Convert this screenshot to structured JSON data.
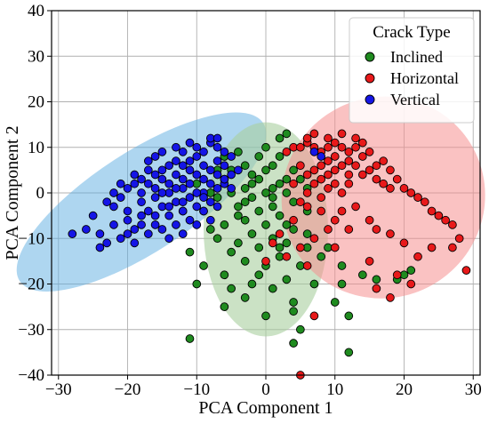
{
  "chart_data": {
    "type": "scatter",
    "title": "",
    "xlabel": "PCA Component 1",
    "ylabel": "PCA Component 2",
    "xlim": [
      -31,
      31
    ],
    "ylim": [
      -40,
      40
    ],
    "xticks": [
      -30,
      -20,
      -10,
      0,
      10,
      20,
      30
    ],
    "yticks": [
      -40,
      -30,
      -20,
      -10,
      0,
      10,
      20,
      30,
      40
    ],
    "xtick_labels": [
      "−30",
      "−20",
      "−10",
      "0",
      "10",
      "20",
      "30"
    ],
    "ytick_labels": [
      "−40",
      "−30",
      "−20",
      "−10",
      "0",
      "10",
      "20",
      "30",
      "40"
    ],
    "grid": true,
    "legend": {
      "title": "Crack Type",
      "placement": "top-right"
    },
    "ellipses": [
      {
        "series": "Vertical",
        "cx": -18,
        "cy": -2,
        "rx": 21,
        "ry": 11,
        "angle": 33,
        "color": "#5dade2",
        "opacity": 0.5
      },
      {
        "series": "Inclined",
        "cx": 0,
        "cy": -8,
        "rx": 9,
        "ry": 23.5,
        "angle": 0,
        "color": "#a9cf9f",
        "opacity": 0.6
      },
      {
        "series": "Horizontal",
        "cx": 17,
        "cy": -1,
        "rx": 14.5,
        "ry": 22.5,
        "angle": -55,
        "color": "#f5908f",
        "opacity": 0.55
      }
    ],
    "series": [
      {
        "name": "Inclined",
        "color": "#1f8b1f",
        "points": [
          [
            3,
            13
          ],
          [
            2,
            12
          ],
          [
            0,
            10
          ],
          [
            -4,
            9
          ],
          [
            -6,
            8
          ],
          [
            -3,
            6
          ],
          [
            1,
            6
          ],
          [
            -5,
            5
          ],
          [
            -2,
            4
          ],
          [
            4,
            5
          ],
          [
            -1,
            3
          ],
          [
            -6,
            3
          ],
          [
            2,
            2
          ],
          [
            1,
            1
          ],
          [
            -3,
            1
          ],
          [
            -8,
            0
          ],
          [
            3,
            0
          ],
          [
            6,
            1
          ],
          [
            0,
            0
          ],
          [
            -2,
            -1
          ],
          [
            -7,
            -1
          ],
          [
            4,
            -2
          ],
          [
            1,
            -3
          ],
          [
            -4,
            -3
          ],
          [
            -1,
            -4
          ],
          [
            -9,
            -4
          ],
          [
            6,
            -4
          ],
          [
            2,
            -5
          ],
          [
            -3,
            -6
          ],
          [
            -6,
            -7
          ],
          [
            0,
            -7
          ],
          [
            4,
            -8
          ],
          [
            -2,
            -9
          ],
          [
            1,
            -10
          ],
          [
            -7,
            -10
          ],
          [
            -4,
            -11
          ],
          [
            3,
            -11
          ],
          [
            6,
            -12
          ],
          [
            -1,
            -12
          ],
          [
            -5,
            -13
          ],
          [
            2,
            -14
          ],
          [
            -11,
            -13
          ],
          [
            -9,
            -16
          ],
          [
            -3,
            -15
          ],
          [
            0,
            -16
          ],
          [
            5,
            -16
          ],
          [
            -6,
            -18
          ],
          [
            -1,
            -18
          ],
          [
            3,
            -19
          ],
          [
            -10,
            -20
          ],
          [
            -5,
            -21
          ],
          [
            1,
            -21
          ],
          [
            7,
            -20
          ],
          [
            -3,
            -23
          ],
          [
            4,
            -24
          ],
          [
            -6,
            -25
          ],
          [
            0,
            -27
          ],
          [
            -11,
            -32
          ],
          [
            5,
            -30
          ],
          [
            4,
            -33
          ],
          [
            12,
            -35
          ],
          [
            10,
            -24
          ],
          [
            11,
            -20
          ],
          [
            12,
            -27
          ],
          [
            14,
            -18
          ],
          [
            16,
            -19
          ],
          [
            19,
            -19
          ],
          [
            20,
            -18
          ],
          [
            21,
            -17
          ],
          [
            8,
            -14
          ],
          [
            11,
            -16
          ],
          [
            9,
            -12
          ],
          [
            6,
            -9
          ],
          [
            3,
            -7
          ],
          [
            -2,
            2
          ],
          [
            0,
            5
          ],
          [
            2,
            8
          ],
          [
            -4,
            -5
          ],
          [
            -8,
            -8
          ],
          [
            1,
            -1
          ],
          [
            -1,
            8
          ],
          [
            5,
            3
          ],
          [
            -5,
            0
          ],
          [
            3,
            3
          ],
          [
            -3,
            -2
          ],
          [
            2,
            -12
          ],
          [
            -2,
            -20
          ],
          [
            4,
            -26
          ],
          [
            -12,
            -4
          ],
          [
            -10,
            2
          ],
          [
            -7,
            5
          ]
        ]
      },
      {
        "name": "Horizontal",
        "color": "#e8191a",
        "points": [
          [
            4,
            10
          ],
          [
            5,
            10
          ],
          [
            6,
            11
          ],
          [
            7,
            10
          ],
          [
            8,
            9
          ],
          [
            9,
            10
          ],
          [
            10,
            11
          ],
          [
            11,
            10
          ],
          [
            12,
            9
          ],
          [
            13,
            10
          ],
          [
            14,
            8
          ],
          [
            12,
            7
          ],
          [
            10,
            8
          ],
          [
            9,
            7
          ],
          [
            8,
            6
          ],
          [
            11,
            6
          ],
          [
            13,
            6
          ],
          [
            15,
            5
          ],
          [
            14,
            4
          ],
          [
            12,
            4
          ],
          [
            10,
            5
          ],
          [
            9,
            4
          ],
          [
            7,
            5
          ],
          [
            6,
            4
          ],
          [
            5,
            6
          ],
          [
            8,
            3
          ],
          [
            10,
            2
          ],
          [
            12,
            2
          ],
          [
            11,
            0
          ],
          [
            9,
            1
          ],
          [
            7,
            2
          ],
          [
            6,
            0
          ],
          [
            8,
            -1
          ],
          [
            5,
            -2
          ],
          [
            4,
            2
          ],
          [
            16,
            3
          ],
          [
            17,
            2
          ],
          [
            18,
            5
          ],
          [
            19,
            3
          ],
          [
            20,
            1
          ],
          [
            21,
            0
          ],
          [
            22,
            -1
          ],
          [
            23,
            -2
          ],
          [
            24,
            -4
          ],
          [
            25,
            -5
          ],
          [
            26,
            -6
          ],
          [
            27,
            -7
          ],
          [
            28,
            -10
          ],
          [
            29,
            -17
          ],
          [
            27,
            -12
          ],
          [
            24,
            -12
          ],
          [
            22,
            -14
          ],
          [
            20,
            -11
          ],
          [
            18,
            -9
          ],
          [
            16,
            -8
          ],
          [
            15,
            -6
          ],
          [
            13,
            -3
          ],
          [
            11,
            -4
          ],
          [
            10,
            -6
          ],
          [
            9,
            -8
          ],
          [
            7,
            -10
          ],
          [
            5,
            -12
          ],
          [
            3,
            -14
          ],
          [
            1,
            -11
          ],
          [
            0,
            -15
          ],
          [
            2,
            -9
          ],
          [
            4,
            -6
          ],
          [
            6,
            -3
          ],
          [
            7,
            -27
          ],
          [
            5,
            -40
          ],
          [
            18,
            -23
          ],
          [
            16,
            -21
          ],
          [
            17,
            7
          ],
          [
            15,
            9
          ],
          [
            13,
            12
          ],
          [
            11,
            13
          ],
          [
            9,
            12
          ],
          [
            7,
            13
          ],
          [
            6,
            12
          ],
          [
            3,
            9
          ],
          [
            14,
            11
          ],
          [
            16,
            6
          ],
          [
            18,
            1
          ],
          [
            8,
            -4
          ],
          [
            12,
            -8
          ],
          [
            10,
            -12
          ],
          [
            6,
            -16
          ],
          [
            15,
            -15
          ],
          [
            19,
            -18
          ],
          [
            21,
            -20
          ]
        ]
      },
      {
        "name": "Vertical",
        "color": "#1515e6",
        "points": [
          [
            -28,
            -9
          ],
          [
            -24,
            -12
          ],
          [
            -23,
            -11
          ],
          [
            -22,
            -7
          ],
          [
            -21,
            -10
          ],
          [
            -20,
            -6
          ],
          [
            -19,
            -8
          ],
          [
            -18,
            -5
          ],
          [
            -17,
            -4
          ],
          [
            -16,
            -7
          ],
          [
            -15,
            -3
          ],
          [
            -14,
            -5
          ],
          [
            -13,
            -2
          ],
          [
            -12,
            -4
          ],
          [
            -11,
            -1
          ],
          [
            -10,
            -3
          ],
          [
            -9,
            0
          ],
          [
            -8,
            -2
          ],
          [
            -7,
            1
          ],
          [
            -6,
            2
          ],
          [
            -5,
            4
          ],
          [
            -18,
            0
          ],
          [
            -17,
            2
          ],
          [
            -16,
            1
          ],
          [
            -15,
            3
          ],
          [
            -14,
            2
          ],
          [
            -13,
            4
          ],
          [
            -12,
            3
          ],
          [
            -11,
            5
          ],
          [
            -10,
            4
          ],
          [
            -9,
            6
          ],
          [
            -8,
            5
          ],
          [
            -7,
            7
          ],
          [
            -6,
            9
          ],
          [
            -7,
            10
          ],
          [
            -8,
            11
          ],
          [
            -9,
            9
          ],
          [
            -10,
            8
          ],
          [
            -11,
            7
          ],
          [
            -12,
            6
          ],
          [
            -13,
            7
          ],
          [
            -14,
            6
          ],
          [
            -15,
            5
          ],
          [
            -16,
            4
          ],
          [
            -17,
            5
          ],
          [
            -18,
            3
          ],
          [
            -19,
            2
          ],
          [
            -20,
            1
          ],
          [
            -21,
            -1
          ],
          [
            -22,
            -3
          ],
          [
            -20,
            -4
          ],
          [
            -18,
            -2
          ],
          [
            -16,
            -1
          ],
          [
            -14,
            0
          ],
          [
            -12,
            1
          ],
          [
            -10,
            0
          ],
          [
            -8,
            2
          ],
          [
            -6,
            3
          ],
          [
            -7,
            -3
          ],
          [
            -9,
            -4
          ],
          [
            -11,
            -6
          ],
          [
            -13,
            -7
          ],
          [
            -15,
            -8
          ],
          [
            -17,
            -9
          ],
          [
            -10,
            10
          ],
          [
            -8,
            12
          ],
          [
            -7,
            12
          ],
          [
            -9,
            3
          ],
          [
            -11,
            2
          ],
          [
            -13,
            1
          ],
          [
            -15,
            0
          ],
          [
            -12,
            -2
          ],
          [
            -14,
            -3
          ],
          [
            -16,
            -5
          ],
          [
            -18,
            -7
          ],
          [
            -20,
            -9
          ],
          [
            -6,
            6
          ],
          [
            -5,
            8
          ],
          [
            -4,
            5
          ],
          [
            -10,
            -7
          ],
          [
            -12,
            -9
          ],
          [
            -14,
            -10
          ],
          [
            -8,
            -6
          ],
          [
            -11,
            11
          ],
          [
            -12,
            9
          ],
          [
            -13,
            10
          ],
          [
            -16,
            8
          ],
          [
            -15,
            9
          ],
          [
            -17,
            7
          ],
          [
            -19,
            4
          ],
          [
            -21,
            2
          ],
          [
            -22,
            0
          ],
          [
            -23,
            -2
          ],
          [
            -25,
            -5
          ],
          [
            -26,
            -8
          ],
          [
            -24,
            -9
          ],
          [
            -19,
            -11
          ],
          [
            -9,
            -1
          ],
          [
            -7,
            4
          ],
          [
            -5,
            1
          ],
          [
            7,
            9
          ],
          [
            8,
            8
          ]
        ]
      }
    ]
  }
}
